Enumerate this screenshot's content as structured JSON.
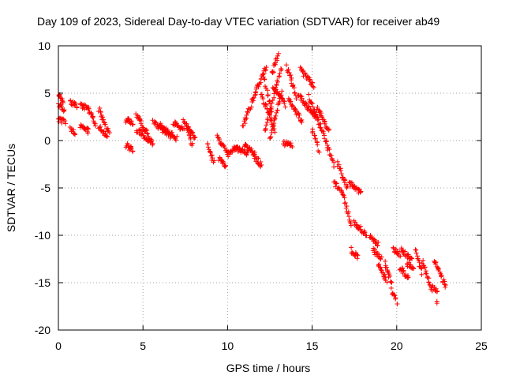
{
  "chart_data": {
    "type": "scatter",
    "title": "Day 109 of 2023, Sidereal Day-to-day VTEC variation (SDTVAR) for receiver ab49",
    "xlabel": "GPS time / hours",
    "ylabel": "SDTVAR / TECUs",
    "xlim": [
      0,
      25
    ],
    "ylim": [
      -20,
      10
    ],
    "xticks": [
      "0",
      "5",
      "10",
      "15",
      "20",
      "25"
    ],
    "yticks": [
      "-20",
      "-15",
      "-10",
      "-5",
      "0",
      "5",
      "10"
    ],
    "grid": true,
    "marker": "+",
    "color": "#ff0000",
    "series": [
      {
        "name": "SDTVAR",
        "segments": [
          {
            "x": [
              0.0,
              0.3
            ],
            "y": [
              4.8,
              4.2
            ]
          },
          {
            "x": [
              0.0,
              0.35
            ],
            "y": [
              3.8,
              3.2
            ]
          },
          {
            "x": [
              0.0,
              0.4
            ],
            "y": [
              2.2,
              2.0
            ]
          },
          {
            "x": [
              0.7,
              1.1
            ],
            "y": [
              4.0,
              3.6
            ]
          },
          {
            "x": [
              0.7,
              1.0
            ],
            "y": [
              1.2,
              0.8
            ]
          },
          {
            "x": [
              1.3,
              1.8
            ],
            "y": [
              3.7,
              3.3
            ]
          },
          {
            "x": [
              1.3,
              1.8
            ],
            "y": [
              1.5,
              1.0
            ]
          },
          {
            "x": [
              1.8,
              2.2
            ],
            "y": [
              3.2,
              1.8
            ]
          },
          {
            "x": [
              2.4,
              3.0
            ],
            "y": [
              3.3,
              0.8
            ]
          },
          {
            "x": [
              2.4,
              2.9
            ],
            "y": [
              1.5,
              0.2
            ]
          },
          {
            "x": [
              4.0,
              4.4
            ],
            "y": [
              2.2,
              1.8
            ]
          },
          {
            "x": [
              4.0,
              4.4
            ],
            "y": [
              -0.5,
              -1.0
            ]
          },
          {
            "x": [
              4.6,
              5.4
            ],
            "y": [
              2.8,
              0.3
            ]
          },
          {
            "x": [
              4.6,
              5.6
            ],
            "y": [
              1.2,
              -0.3
            ]
          },
          {
            "x": [
              5.6,
              6.6
            ],
            "y": [
              2.0,
              0.5
            ]
          },
          {
            "x": [
              6.0,
              7.0
            ],
            "y": [
              1.6,
              0.2
            ]
          },
          {
            "x": [
              6.8,
              7.4
            ],
            "y": [
              1.8,
              1.2
            ]
          },
          {
            "x": [
              7.4,
              7.9
            ],
            "y": [
              2.2,
              -0.5
            ]
          },
          {
            "x": [
              7.6,
              8.1
            ],
            "y": [
              1.5,
              0.2
            ]
          },
          {
            "x": [
              8.8,
              9.2
            ],
            "y": [
              -0.4,
              -2.4
            ]
          },
          {
            "x": [
              9.4,
              10.0
            ],
            "y": [
              0.3,
              -1.2
            ]
          },
          {
            "x": [
              9.5,
              9.9
            ],
            "y": [
              -2.0,
              -2.6
            ]
          },
          {
            "x": [
              10.0,
              10.6
            ],
            "y": [
              -1.5,
              -0.5
            ]
          },
          {
            "x": [
              10.4,
              11.2
            ],
            "y": [
              -0.8,
              -1.3
            ]
          },
          {
            "x": [
              11.0,
              11.6
            ],
            "y": [
              -0.5,
              -1.4
            ]
          },
          {
            "x": [
              11.5,
              12.0
            ],
            "y": [
              -1.5,
              -2.6
            ]
          },
          {
            "x": [
              10.9,
              11.7
            ],
            "y": [
              1.5,
              5.2
            ]
          },
          {
            "x": [
              11.7,
              12.3
            ],
            "y": [
              5.4,
              7.8
            ]
          },
          {
            "x": [
              12.0,
              12.8
            ],
            "y": [
              4.8,
              1.0
            ]
          },
          {
            "x": [
              12.1,
              12.6
            ],
            "y": [
              7.0,
              3.0
            ]
          },
          {
            "x": [
              12.2,
              13.2
            ],
            "y": [
              1.0,
              7.8
            ]
          },
          {
            "x": [
              12.6,
              13.0
            ],
            "y": [
              7.0,
              9.0
            ]
          },
          {
            "x": [
              12.7,
              13.4
            ],
            "y": [
              5.8,
              3.8
            ]
          },
          {
            "x": [
              12.5,
              13.2
            ],
            "y": [
              0.0,
              5.0
            ]
          },
          {
            "x": [
              13.5,
              14.1
            ],
            "y": [
              7.8,
              4.5
            ]
          },
          {
            "x": [
              13.6,
              14.4
            ],
            "y": [
              4.5,
              2.0
            ]
          },
          {
            "x": [
              13.3,
              13.8
            ],
            "y": [
              -0.3,
              -0.5
            ]
          },
          {
            "x": [
              14.3,
              15.1
            ],
            "y": [
              7.5,
              5.8
            ]
          },
          {
            "x": [
              14.2,
              15.2
            ],
            "y": [
              4.8,
              2.5
            ]
          },
          {
            "x": [
              14.8,
              15.5
            ],
            "y": [
              4.6,
              1.5
            ]
          },
          {
            "x": [
              15.0,
              15.4
            ],
            "y": [
              1.2,
              -1.0
            ]
          },
          {
            "x": [
              15.3,
              16.0
            ],
            "y": [
              3.5,
              1.0
            ]
          },
          {
            "x": [
              15.5,
              16.3
            ],
            "y": [
              1.5,
              -2.6
            ]
          },
          {
            "x": [
              16.5,
              17.1
            ],
            "y": [
              -2.5,
              -5.0
            ]
          },
          {
            "x": [
              16.7,
              17.3
            ],
            "y": [
              -5.0,
              -8.8
            ]
          },
          {
            "x": [
              16.3,
              16.6
            ],
            "y": [
              -4.5,
              -5.0
            ]
          },
          {
            "x": [
              17.2,
              17.9
            ],
            "y": [
              -4.5,
              -5.6
            ]
          },
          {
            "x": [
              17.5,
              18.2
            ],
            "y": [
              -8.6,
              -10.0
            ]
          },
          {
            "x": [
              17.3,
              17.7
            ],
            "y": [
              -11.5,
              -12.4
            ]
          },
          {
            "x": [
              18.4,
              18.9
            ],
            "y": [
              -10.0,
              -11.0
            ]
          },
          {
            "x": [
              18.6,
              19.1
            ],
            "y": [
              -11.5,
              -12.5
            ]
          },
          {
            "x": [
              18.9,
              19.4
            ],
            "y": [
              -13.0,
              -14.8
            ]
          },
          {
            "x": [
              19.3,
              19.7
            ],
            "y": [
              -13.0,
              -15.0
            ]
          },
          {
            "x": [
              19.7,
              20.0
            ],
            "y": [
              -15.8,
              -17.0
            ]
          },
          {
            "x": [
              19.8,
              20.2
            ],
            "y": [
              -11.5,
              -12.0
            ]
          },
          {
            "x": [
              20.2,
              20.7
            ],
            "y": [
              -13.5,
              -14.5
            ]
          },
          {
            "x": [
              20.3,
              20.9
            ],
            "y": [
              -11.5,
              -12.7
            ]
          },
          {
            "x": [
              20.6,
              21.0
            ],
            "y": [
              -13.0,
              -13.5
            ]
          },
          {
            "x": [
              21.1,
              21.5
            ],
            "y": [
              -11.5,
              -14.0
            ]
          },
          {
            "x": [
              21.5,
              22.1
            ],
            "y": [
              -12.7,
              -15.8
            ]
          },
          {
            "x": [
              22.2,
              22.9
            ],
            "y": [
              -12.5,
              -15.5
            ]
          },
          {
            "x": [
              22.1,
              22.4
            ],
            "y": [
              -15.5,
              -16.0
            ]
          },
          {
            "x": [
              22.4,
              22.4
            ],
            "y": [
              -17.2,
              -17.2
            ]
          }
        ]
      }
    ]
  }
}
